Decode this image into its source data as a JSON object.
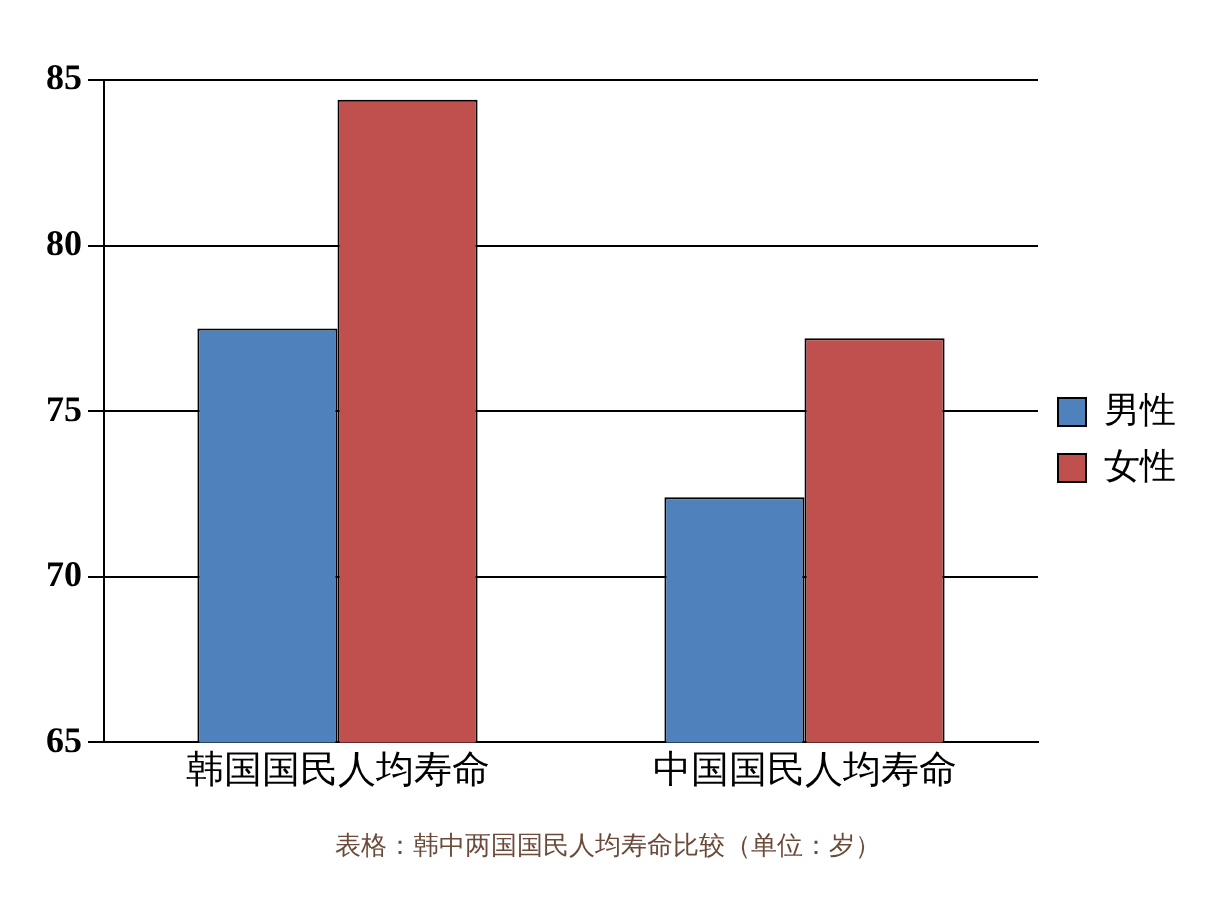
{
  "chart_data": {
    "type": "bar",
    "categories": [
      "韩国国民人均寿命",
      "中国国民人均寿命"
    ],
    "series": [
      {
        "name": "男性",
        "color": "#4f81bd",
        "values": [
          77.5,
          72.4
        ]
      },
      {
        "name": "女性",
        "color": "#c0504d",
        "values": [
          84.4,
          77.2
        ]
      }
    ],
    "ylim": [
      65,
      85
    ],
    "yticks": [
      65,
      70,
      75,
      80,
      85
    ],
    "grid": "y",
    "legend": "right",
    "annotations": [
      "表格：韩中两国国民人均寿命比较（单位：岁）"
    ]
  }
}
